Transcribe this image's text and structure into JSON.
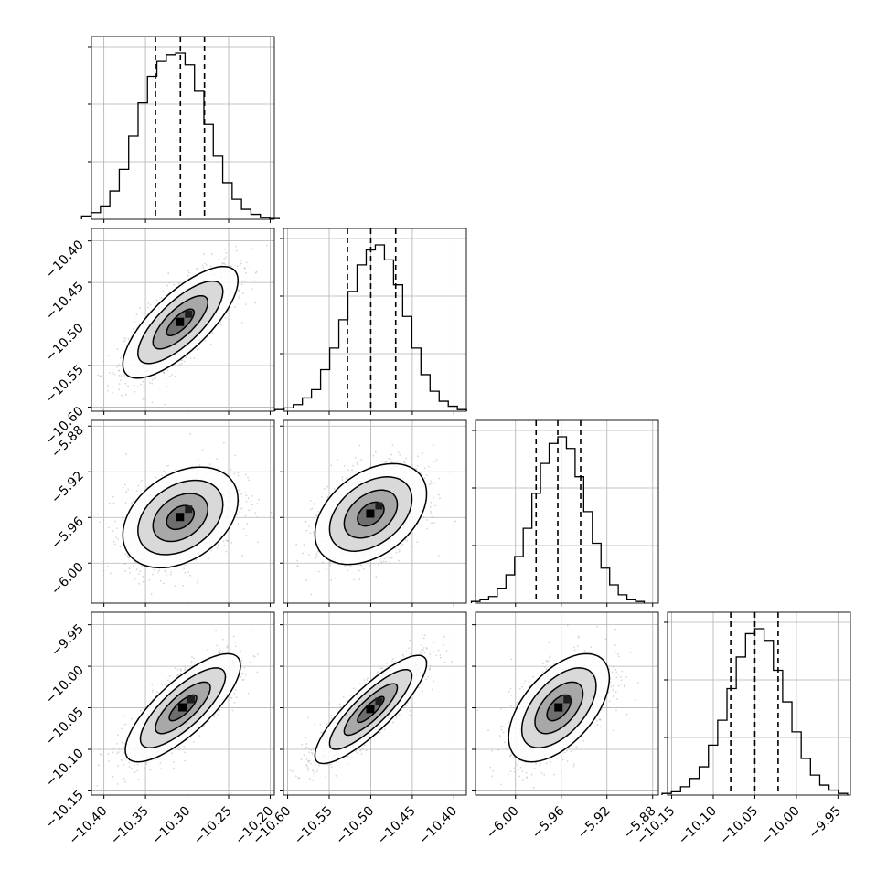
{
  "chart_data": {
    "type": "corner",
    "title": "",
    "grid": true,
    "parameters": [
      {
        "range": [
          -10.415,
          -10.195
        ],
        "ticks": [
          -10.4,
          -10.35,
          -10.3,
          -10.25,
          -10.2
        ],
        "tick_labels": [
          "−10.40",
          "−10.35",
          "−10.30",
          "−10.25",
          "−10.20"
        ]
      },
      {
        "range": [
          -10.605,
          -10.385
        ],
        "ticks": [
          -10.6,
          -10.55,
          -10.5,
          -10.45,
          -10.4
        ],
        "tick_labels": [
          "−10.60",
          "−10.55",
          "−10.50",
          "−10.45",
          "−10.40"
        ]
      },
      {
        "range": [
          -6.035,
          -5.875
        ],
        "ticks": [
          -6.0,
          -5.96,
          -5.92,
          -5.88
        ],
        "tick_labels": [
          "−6.00",
          "−5.96",
          "−5.92",
          "−5.88"
        ]
      },
      {
        "range": [
          -10.155,
          -9.935
        ],
        "ticks": [
          -10.15,
          -10.1,
          -10.05,
          -10.0,
          -9.95
        ],
        "tick_labels": [
          "−10.15",
          "−10.10",
          "−10.05",
          "−10.00",
          "−9.95"
        ]
      }
    ],
    "marginals": [
      {
        "quantiles": [
          -10.338,
          -10.308,
          -10.279
        ],
        "hist": [
          0.02,
          0.04,
          0.08,
          0.17,
          0.3,
          0.5,
          0.7,
          0.86,
          0.95,
          0.99,
          1.0,
          0.93,
          0.77,
          0.57,
          0.38,
          0.22,
          0.12,
          0.06,
          0.03,
          0.01,
          0.005
        ]
      },
      {
        "quantiles": [
          -10.528,
          -10.5,
          -10.47
        ],
        "hist": [
          0.01,
          0.02,
          0.04,
          0.08,
          0.13,
          0.25,
          0.38,
          0.55,
          0.72,
          0.88,
          0.97,
          1.0,
          0.91,
          0.76,
          0.57,
          0.38,
          0.22,
          0.12,
          0.06,
          0.03,
          0.01
        ]
      },
      {
        "quantiles": [
          -5.982,
          -5.963,
          -5.943
        ],
        "hist": [
          0.01,
          0.02,
          0.04,
          0.09,
          0.17,
          0.28,
          0.45,
          0.66,
          0.84,
          0.96,
          1.0,
          0.93,
          0.76,
          0.55,
          0.36,
          0.21,
          0.11,
          0.05,
          0.02,
          0.01
        ]
      },
      {
        "quantiles": [
          -10.079,
          -10.05,
          -10.022
        ],
        "hist": [
          0.01,
          0.02,
          0.05,
          0.1,
          0.17,
          0.3,
          0.45,
          0.64,
          0.83,
          0.97,
          1.0,
          0.93,
          0.75,
          0.56,
          0.38,
          0.22,
          0.12,
          0.06,
          0.03,
          0.01
        ]
      }
    ],
    "joints": [
      {
        "x": 0,
        "y": 1,
        "center": [
          -10.308,
          -10.498
        ],
        "rho": 0.75
      },
      {
        "x": 0,
        "y": 2,
        "center": [
          -10.308,
          -5.96
        ],
        "rho": 0.35
      },
      {
        "x": 1,
        "y": 2,
        "center": [
          -10.5,
          -5.957
        ],
        "rho": 0.4
      },
      {
        "x": 0,
        "y": 3,
        "center": [
          -10.305,
          -10.05
        ],
        "rho": 0.78
      },
      {
        "x": 1,
        "y": 3,
        "center": [
          -10.5,
          -10.052
        ],
        "rho": 0.85
      },
      {
        "x": 2,
        "y": 3,
        "center": [
          -5.962,
          -10.05
        ],
        "rho": 0.55
      }
    ],
    "sigmas": [
      0.033,
      0.032,
      0.021,
      0.031
    ]
  }
}
